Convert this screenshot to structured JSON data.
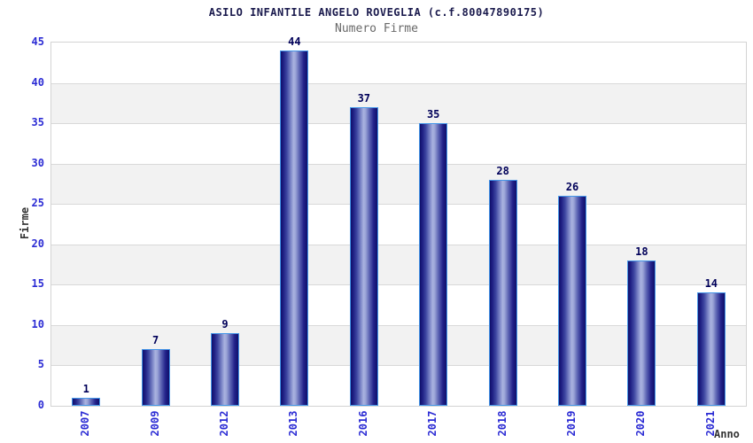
{
  "chart_data": {
    "type": "bar",
    "title": "ASILO INFANTILE ANGELO ROVEGLIA (c.f.80047890175)",
    "subtitle": "Numero Firme",
    "categories": [
      "2007",
      "2009",
      "2012",
      "2013",
      "2016",
      "2017",
      "2018",
      "2019",
      "2020",
      "2021"
    ],
    "values": [
      1,
      7,
      9,
      44,
      37,
      35,
      28,
      26,
      18,
      14
    ],
    "xlabel": "Anno",
    "ylabel": "Firme",
    "ylim": [
      0,
      45
    ],
    "ytick_step": 5,
    "yticks": [
      0,
      5,
      10,
      15,
      20,
      25,
      30,
      35,
      40,
      45
    ],
    "grid": "horizontal-bands",
    "legend": "none",
    "colors": {
      "bar_dark": "#10106a",
      "bar_light": "#aab3e0",
      "bar_border": "#4596e8",
      "tick_label": "#2b2bd4",
      "value_label": "#000059",
      "title": "#1a1a4d",
      "subtitle": "#696969",
      "axis_label": "#333333",
      "band": "#f2f2f2",
      "grid_line": "#d9d9d9",
      "plot_border": "#d3d3d3",
      "background": "#ffffff"
    }
  }
}
